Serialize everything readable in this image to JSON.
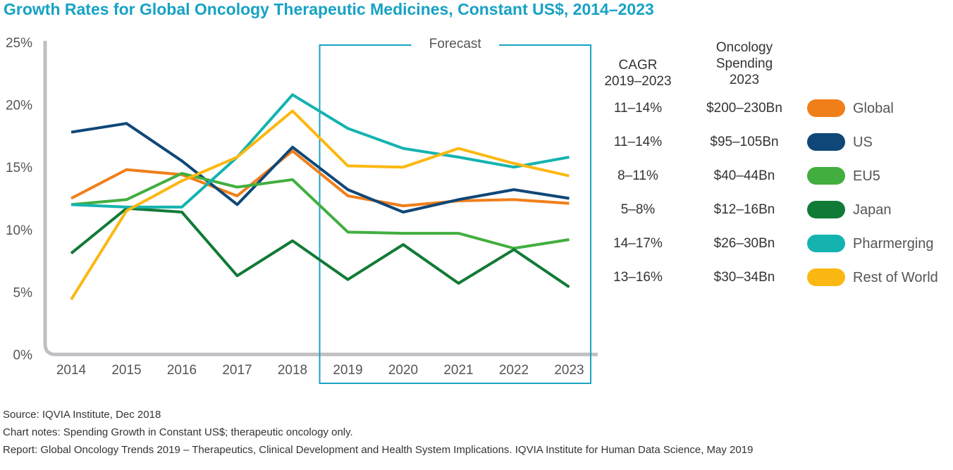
{
  "title": "Growth Rates for Global Oncology Therapeutic Medicines, Constant US$, 2014–2023",
  "chart_data": {
    "type": "line",
    "title": "Growth Rates for Global Oncology Therapeutic Medicines, Constant US$, 2014–2023",
    "x": [
      "2014",
      "2015",
      "2016",
      "2017",
      "2018",
      "2019",
      "2020",
      "2021",
      "2022",
      "2023"
    ],
    "ylim": [
      0,
      25
    ],
    "y_ticks": [
      0,
      5,
      10,
      15,
      20,
      25
    ],
    "y_tick_labels": [
      "0%",
      "5%",
      "10%",
      "15%",
      "20%",
      "25%"
    ],
    "grid": false,
    "forecast_label": "Forecast",
    "forecast_range": [
      "2019",
      "2023"
    ],
    "series": [
      {
        "name": "Global",
        "color": "#f07f1a",
        "values": [
          12.5,
          14.8,
          14.4,
          12.7,
          16.3,
          12.7,
          11.9,
          12.3,
          12.4,
          12.1
        ]
      },
      {
        "name": "US",
        "color": "#0f4778",
        "values": [
          17.8,
          18.5,
          15.5,
          12.0,
          16.6,
          13.2,
          11.4,
          12.4,
          13.2,
          12.5
        ]
      },
      {
        "name": "EU5",
        "color": "#42ae3f",
        "values": [
          12.0,
          12.4,
          14.5,
          13.4,
          14.0,
          9.8,
          9.7,
          9.7,
          8.5,
          9.2
        ]
      },
      {
        "name": "Japan",
        "color": "#117a36",
        "values": [
          8.1,
          11.7,
          11.4,
          6.3,
          9.1,
          6.0,
          8.8,
          5.7,
          8.4,
          5.4
        ]
      },
      {
        "name": "Pharmerging",
        "color": "#14b3b0",
        "values": [
          12.0,
          11.8,
          11.8,
          15.8,
          20.8,
          18.1,
          16.5,
          15.8,
          15.0,
          15.8
        ]
      },
      {
        "name": "Rest of World",
        "color": "#fbb812",
        "values": [
          4.4,
          11.5,
          13.9,
          15.8,
          19.5,
          15.1,
          15.0,
          16.5,
          15.3,
          14.3
        ]
      }
    ]
  },
  "table": {
    "cagr_header": [
      "CAGR",
      "2019–2023"
    ],
    "spend_header": [
      "Oncology",
      "Spending",
      "2023"
    ],
    "rows": [
      {
        "name": "Global",
        "cagr": "11–14%",
        "spend": "$200–230Bn"
      },
      {
        "name": "US",
        "cagr": "11–14%",
        "spend": "$95–105Bn"
      },
      {
        "name": "EU5",
        "cagr": "8–11%",
        "spend": "$40–44Bn"
      },
      {
        "name": "Japan",
        "cagr": "5–8%",
        "spend": "$12–16Bn"
      },
      {
        "name": "Pharmerging",
        "cagr": "14–17%",
        "spend": "$26–30Bn"
      },
      {
        "name": "Rest of World",
        "cagr": "13–16%",
        "spend": "$30–34Bn"
      }
    ]
  },
  "footer": {
    "source": "Source: IQVIA Institute, Dec 2018",
    "notes": "Chart notes: Spending Growth in Constant US$; therapeutic oncology only.",
    "report": "Report: Global Oncology Trends 2019 – Therapeutics, Clinical Development and Health System Implications. IQVIA Institute for Human Data Science, May 2019"
  }
}
